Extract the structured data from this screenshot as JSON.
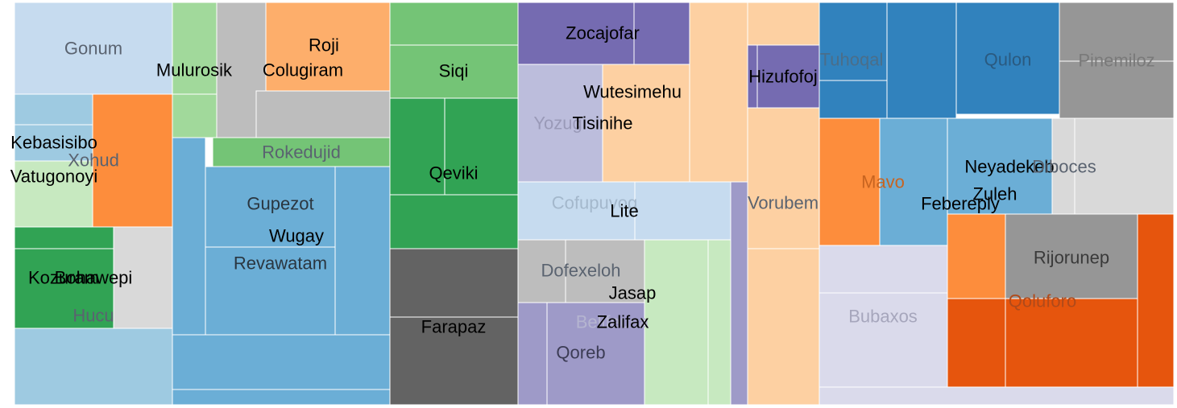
{
  "chart_data": {
    "type": "treemap",
    "groups": [
      {
        "name": "g1",
        "leaves": [
          {
            "name": "Gonum",
            "value": 7.4,
            "color": "#c6dbef",
            "label_color": "#5a6370"
          },
          {
            "name": "Kebasisibo",
            "value": 2.2,
            "color": "#9ecae1",
            "label_color": "#000000"
          },
          {
            "name": "Vatugonoyi",
            "value": 4.1,
            "color": "#c7e9c0",
            "label_color": "#000000"
          },
          {
            "name": "Xohud",
            "value": 8.4,
            "color": "#fd8d3c",
            "label_color": "#5a6370"
          },
          {
            "name": "Kozuram",
            "value": 5.8,
            "color": "#31a354",
            "label_color": "#000000"
          },
          {
            "name": "Bohawepi",
            "value": 4.0,
            "color": "#d9d9d9",
            "label_color": "#000000"
          },
          {
            "name": "Hucu",
            "value": 6.5,
            "color": "#9ecae1",
            "label_color": "#5a6370"
          }
        ]
      },
      {
        "name": "g2",
        "leaves": [
          {
            "name": "Mulurosik",
            "value": 5.5,
            "color": "#a1d99b",
            "label_color": "#000000"
          },
          {
            "name": "Roji",
            "value": 5.4,
            "color": "#fdae6b",
            "label_color": "#000000"
          },
          {
            "name": "Colugiram",
            "value": 3.0,
            "color": "#bdbdbd",
            "label_color": "#000000"
          },
          {
            "name": "Rokedujid",
            "value": 1.9,
            "color": "#74c476",
            "label_color": "#5a6370"
          },
          {
            "name": "Gupezot",
            "value": 4.7,
            "color": "#6baed6",
            "label_color": "#2a3640"
          },
          {
            "name": "Wugay",
            "value": 2.5,
            "color": "#6baed6",
            "label_color": "#000000"
          },
          {
            "name": "Revawatam",
            "value": 7.6,
            "color": "#6baed6",
            "label_color": "#2a3640"
          }
        ]
      },
      {
        "name": "g3",
        "leaves": [
          {
            "name": "Siqi",
            "value": 3.3,
            "color": "#74c476",
            "label_color": "#000000"
          },
          {
            "name": "Qeviki",
            "value": 8.2,
            "color": "#31a354",
            "label_color": "#000000"
          },
          {
            "name": "Farapaz",
            "value": 9.0,
            "color": "#636363",
            "label_color": "#000000"
          }
        ]
      },
      {
        "name": "g4",
        "leaves": [
          {
            "name": "Zocajofar",
            "value": 3.5,
            "color": "#756bb1",
            "label_color": "#000000"
          },
          {
            "name": "Wutesimehu",
            "value": 4.2,
            "color": "#fdd0a2",
            "label_color": "#000000"
          },
          {
            "name": "Yozugi",
            "value": 4.4,
            "color": "#bcbddc",
            "label_color": "#9a9ab8"
          },
          {
            "name": "Tisinihe",
            "value": 4.0,
            "color": "#fdd0a2",
            "label_color": "#000000"
          },
          {
            "name": "Cofupuvoq",
            "value": 3.9,
            "color": "#c6dbef",
            "label_color": "#a4b8cc"
          },
          {
            "name": "Lite",
            "value": 2.9,
            "color": "#c6dbef",
            "label_color": "#000000"
          },
          {
            "name": "Dofexeloh",
            "value": 3.5,
            "color": "#bdbdbd",
            "label_color": "#5a6370"
          },
          {
            "name": "Jasap",
            "value": 2.4,
            "color": "#c7e9c0",
            "label_color": "#000000"
          },
          {
            "name": "Belifeusa",
            "value": 3.3,
            "color": "#c7e9c0",
            "label_color": "#b5b5d0"
          },
          {
            "name": "Zalifax",
            "value": 2.6,
            "color": "#9e9ac8",
            "label_color": "#000000"
          },
          {
            "name": "Qoreb",
            "value": 3.6,
            "color": "#9e9ac8",
            "label_color": "#3c3c55"
          }
        ]
      },
      {
        "name": "g5",
        "leaves": [
          {
            "name": "Hizufofoj",
            "value": 1.9,
            "color": "#756bb1",
            "label_color": "#000000"
          },
          {
            "name": "Vorubem",
            "value": 8.6,
            "color": "#fdd0a2",
            "label_color": "#5a6370"
          }
        ]
      },
      {
        "name": "g6",
        "leaves": [
          {
            "name": "Tuhoqal",
            "value": 3.1,
            "color": "#3182bd",
            "label_color": "#4a6e8a"
          },
          {
            "name": "Qulon",
            "value": 4.4,
            "color": "#3182bd",
            "label_color": "#2a5a80"
          },
          {
            "name": "Pinemiloz",
            "value": 3.2,
            "color": "#969696",
            "label_color": "#7a7a7a"
          },
          {
            "name": "Mavo",
            "value": 4.0,
            "color": "#fd8d3c",
            "label_color": "#c86420"
          },
          {
            "name": "Neyadekeb",
            "value": 3.3,
            "color": "#6baed6",
            "label_color": "#000000"
          },
          {
            "name": "Diboces",
            "value": 3.0,
            "color": "#d9d9d9",
            "label_color": "#5a6370"
          },
          {
            "name": "Zuleh",
            "value": 2.7,
            "color": "#6baed6",
            "label_color": "#000000"
          },
          {
            "name": "Febereply",
            "value": 3.4,
            "color": "#fd8d3c",
            "label_color": "#000000"
          },
          {
            "name": "Rijorunep",
            "value": 3.1,
            "color": "#969696",
            "label_color": "#3a3a3a"
          },
          {
            "name": "Qoluforo",
            "value": 4.4,
            "color": "#e6550d",
            "label_color": "#b04a1a"
          },
          {
            "name": "Bubaxos",
            "value": 3.6,
            "color": "#dadaeb",
            "label_color": "#a6a6bc"
          }
        ]
      }
    ]
  }
}
